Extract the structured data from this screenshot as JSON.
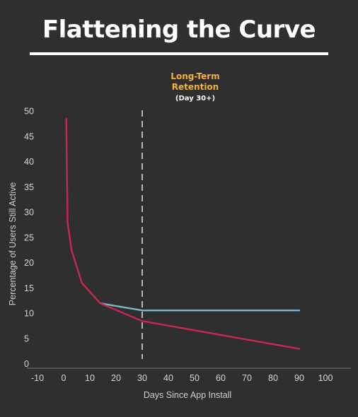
{
  "header": {
    "title": "Flattening the Curve"
  },
  "colors": {
    "background": "#2f2f2f",
    "baseline_series": "#c8284f",
    "improved_series": "#7bb6c9",
    "annotation": "#f2b23b",
    "marker": "#d9d9d9"
  },
  "chart_data": {
    "type": "line",
    "title": "",
    "xlabel": "Days Since App Install",
    "ylabel": "Percentage of Users Still Active",
    "xlim": [
      -10,
      100
    ],
    "ylim": [
      0,
      50
    ],
    "x_ticks": [
      -10,
      0,
      10,
      20,
      30,
      40,
      50,
      60,
      70,
      80,
      90,
      100
    ],
    "y_ticks": [
      0,
      5,
      10,
      15,
      20,
      25,
      30,
      35,
      40,
      45,
      50
    ],
    "grid": false,
    "legend": "none",
    "series": [
      {
        "color": "#c8284f",
        "x": [
          1,
          1.2,
          1.5,
          3,
          7,
          14,
          30,
          90
        ],
        "y": [
          48.5,
          40,
          28,
          22.5,
          16,
          12,
          8.5,
          3
        ]
      },
      {
        "color": "#7bb6c9",
        "x": [
          14,
          30,
          90
        ],
        "y": [
          12,
          10.6,
          10.6
        ]
      }
    ],
    "reference_line": {
      "x": 30,
      "style": "dashed"
    },
    "annotation": {
      "line1": "Long-Term",
      "line2": "Retention",
      "line3": "(Day 30+)",
      "x": 30
    }
  }
}
